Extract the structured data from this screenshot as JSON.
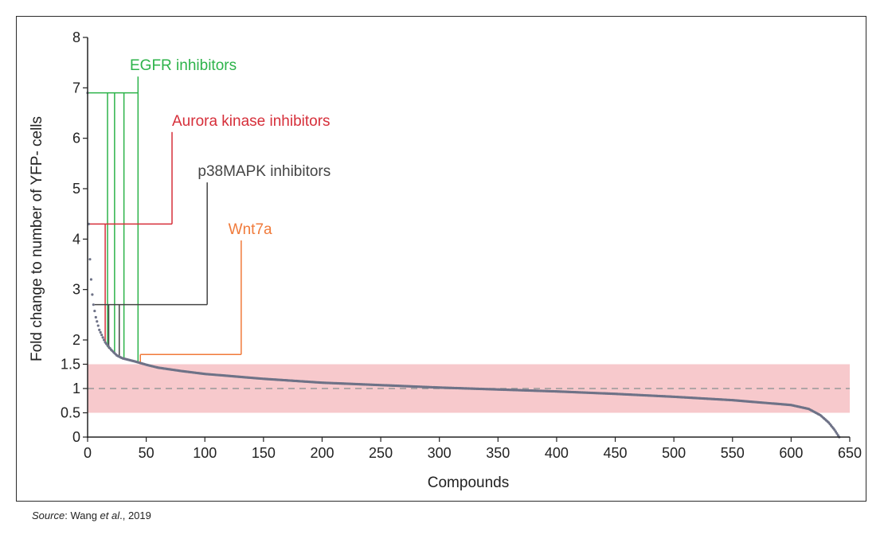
{
  "source": {
    "prefix": "Source",
    "colon": ":",
    "author": " Wang ",
    "etal": "et al",
    "rest": "., 2019"
  },
  "chart_data": {
    "type": "scatter",
    "title": "",
    "xlabel": "Compounds",
    "ylabel": "Fold change to number of YFP- cells",
    "xlim": [
      0,
      650
    ],
    "ylim": [
      0,
      8
    ],
    "x_ticks": [
      0,
      50,
      100,
      150,
      200,
      250,
      300,
      350,
      400,
      450,
      500,
      550,
      600,
      650
    ],
    "y_ticks": [
      0,
      0.5,
      1,
      1.5,
      2,
      3,
      4,
      5,
      6,
      7,
      8
    ],
    "y_tick_labels": [
      "0",
      "0.5",
      "1",
      "1.5",
      "2",
      "3",
      "4",
      "5",
      "6",
      "7",
      "8"
    ],
    "y_scale_note": "piecewise: 0 to 2 stretched, 2 to 8 linear",
    "band": {
      "y_from": 0.5,
      "y_to": 1.5,
      "color": "#f7c9cc"
    },
    "reference_line": {
      "y": 1,
      "style": "dashed",
      "color": "#999999"
    },
    "point_color": "#6e7287",
    "series_curve": [
      [
        0,
        6.9
      ],
      [
        1,
        4.3
      ],
      [
        2,
        3.6
      ],
      [
        3,
        3.2
      ],
      [
        4,
        2.9
      ],
      [
        5,
        2.7
      ],
      [
        7,
        2.45
      ],
      [
        10,
        2.2
      ],
      [
        15,
        1.95
      ],
      [
        20,
        1.8
      ],
      [
        25,
        1.68
      ],
      [
        30,
        1.62
      ],
      [
        40,
        1.56
      ],
      [
        50,
        1.49
      ],
      [
        60,
        1.43
      ],
      [
        80,
        1.36
      ],
      [
        100,
        1.3
      ],
      [
        150,
        1.2
      ],
      [
        200,
        1.12
      ],
      [
        250,
        1.07
      ],
      [
        300,
        1.02
      ],
      [
        350,
        0.98
      ],
      [
        400,
        0.94
      ],
      [
        450,
        0.89
      ],
      [
        500,
        0.83
      ],
      [
        550,
        0.76
      ],
      [
        600,
        0.66
      ],
      [
        615,
        0.58
      ],
      [
        625,
        0.45
      ],
      [
        632,
        0.3
      ],
      [
        637,
        0.15
      ],
      [
        641,
        0.0
      ]
    ],
    "annotations": [
      {
        "label": "EGFR inhibitors",
        "color": "#2db34a",
        "compounds": [
          {
            "x": 0,
            "y": 6.9
          },
          {
            "x": 17,
            "y": 1.85
          },
          {
            "x": 23,
            "y": 1.72
          },
          {
            "x": 31,
            "y": 1.6
          },
          {
            "x": 43,
            "y": 1.54
          }
        ],
        "level_y": 6.9,
        "stem_x": 43,
        "text_x": 36,
        "text_y": 7.35
      },
      {
        "label": "Aurora kinase inhibitors",
        "color": "#d62f3a",
        "compounds": [
          {
            "x": 1,
            "y": 4.3
          },
          {
            "x": 15,
            "y": 1.95
          }
        ],
        "level_y": 4.3,
        "stem_x": 72,
        "text_x": 72,
        "text_y": 6.25
      },
      {
        "label": "p38MAPK inhibitors",
        "color": "#444444",
        "compounds": [
          {
            "x": 6,
            "y": 2.7
          },
          {
            "x": 18,
            "y": 1.82
          },
          {
            "x": 27,
            "y": 1.65
          }
        ],
        "level_y": 2.7,
        "stem_x": 102,
        "text_x": 94,
        "text_y": 5.25
      },
      {
        "label": "Wnt7a",
        "color": "#f07a3a",
        "compounds": [
          {
            "x": 45,
            "y": 1.52
          }
        ],
        "level_y": 1.7,
        "stem_x": 131,
        "text_x": 120,
        "text_y": 4.1
      }
    ]
  }
}
